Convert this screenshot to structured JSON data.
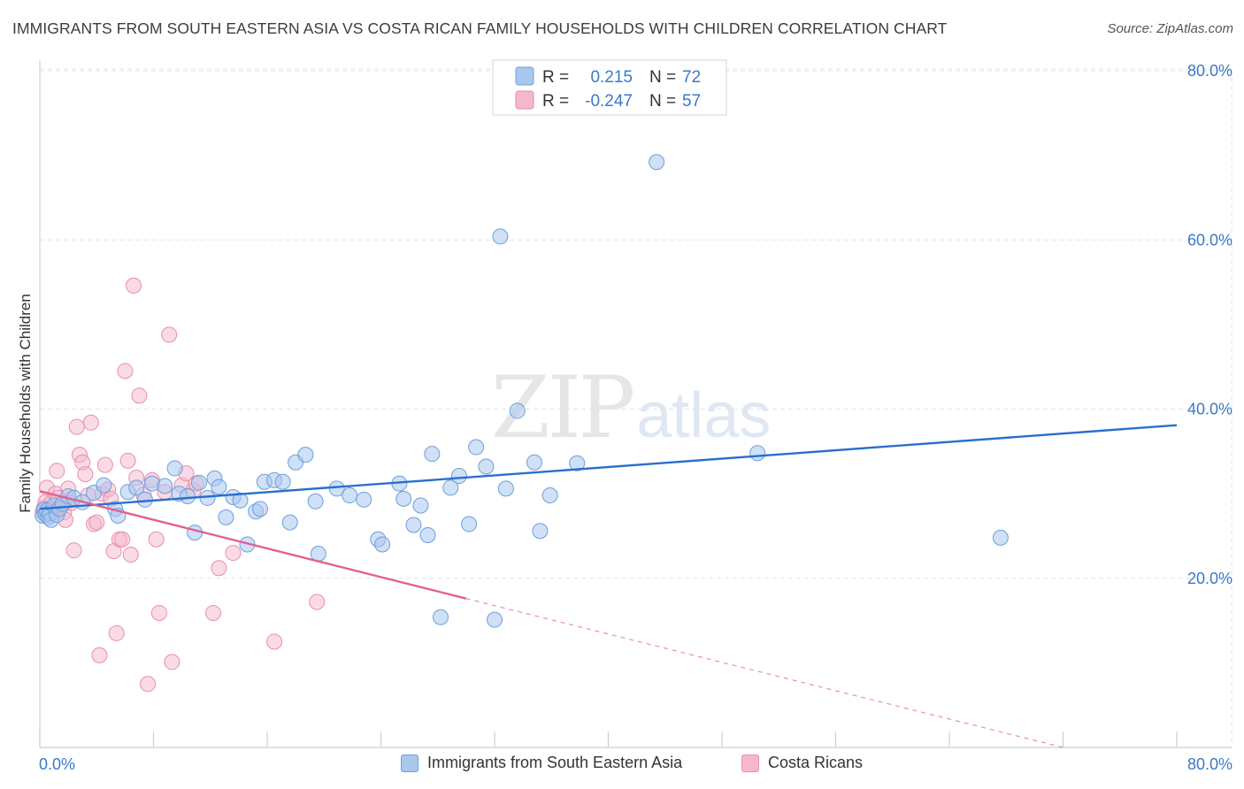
{
  "title": "IMMIGRANTS FROM SOUTH EASTERN ASIA VS COSTA RICAN FAMILY HOUSEHOLDS WITH CHILDREN CORRELATION CHART",
  "source": "Source: ZipAtlas.com",
  "watermark": {
    "zip": "ZIP",
    "atlas": "atlas"
  },
  "legend": {
    "r_label": "R =",
    "n_label": "N =",
    "series": [
      {
        "r": "0.215",
        "n": "72"
      },
      {
        "r": "-0.247",
        "n": "57"
      }
    ]
  },
  "colors": {
    "blue_fill": "#a9c7ee",
    "blue_stroke": "#6d9fdc",
    "blue_line": "#2a6fcc",
    "pink_fill": "#f5b8cb",
    "pink_stroke": "#e98dab",
    "pink_line": "#e0608e",
    "axis_text": "#3b78c8"
  },
  "chart_data": {
    "type": "scatter",
    "title": "IMMIGRANTS FROM SOUTH EASTERN ASIA VS COSTA RICAN FAMILY HOUSEHOLDS WITH CHILDREN CORRELATION CHART",
    "xlabel": "",
    "ylabel": "Family Households with Children",
    "xlim": [
      0,
      80
    ],
    "ylim": [
      0,
      80
    ],
    "x_tick_labels": [
      "0.0%",
      "80.0%"
    ],
    "y_ticks": [
      20,
      40,
      60,
      80
    ],
    "y_tick_labels": [
      "20.0%",
      "40.0%",
      "60.0%",
      "80.0%"
    ],
    "grid": true,
    "series": [
      {
        "name": "Immigrants from South Eastern Asia",
        "color": "#a9c7ee",
        "trend": {
          "x": [
            0,
            80
          ],
          "y": [
            28.2,
            38.1
          ]
        },
        "points": [
          [
            0.2,
            27.4
          ],
          [
            0.3,
            28.1
          ],
          [
            0.4,
            27.6
          ],
          [
            0.5,
            28.0
          ],
          [
            0.6,
            27.2
          ],
          [
            0.7,
            27.7
          ],
          [
            0.8,
            26.9
          ],
          [
            1.0,
            28.6
          ],
          [
            1.2,
            27.5
          ],
          [
            1.4,
            28.2
          ],
          [
            1.6,
            28.8
          ],
          [
            2.0,
            29.7
          ],
          [
            2.4,
            29.5
          ],
          [
            3.0,
            29.0
          ],
          [
            3.8,
            30.1
          ],
          [
            4.5,
            31.0
          ],
          [
            5.3,
            28.2
          ],
          [
            5.5,
            27.4
          ],
          [
            6.2,
            30.2
          ],
          [
            6.8,
            30.7
          ],
          [
            7.4,
            29.3
          ],
          [
            7.9,
            31.2
          ],
          [
            8.8,
            30.9
          ],
          [
            9.5,
            33.0
          ],
          [
            9.8,
            30.0
          ],
          [
            10.4,
            29.7
          ],
          [
            10.9,
            25.4
          ],
          [
            11.2,
            31.3
          ],
          [
            11.8,
            29.5
          ],
          [
            12.3,
            31.8
          ],
          [
            12.6,
            30.8
          ],
          [
            13.1,
            27.2
          ],
          [
            13.6,
            29.6
          ],
          [
            14.1,
            29.2
          ],
          [
            14.6,
            24.0
          ],
          [
            15.2,
            27.9
          ],
          [
            15.5,
            28.2
          ],
          [
            15.8,
            31.4
          ],
          [
            16.5,
            31.6
          ],
          [
            17.1,
            31.4
          ],
          [
            17.6,
            26.6
          ],
          [
            18.0,
            33.7
          ],
          [
            18.7,
            34.6
          ],
          [
            19.4,
            29.1
          ],
          [
            19.6,
            22.9
          ],
          [
            20.9,
            30.6
          ],
          [
            21.8,
            29.8
          ],
          [
            22.8,
            29.3
          ],
          [
            23.8,
            24.6
          ],
          [
            24.1,
            24.0
          ],
          [
            25.3,
            31.2
          ],
          [
            25.6,
            29.4
          ],
          [
            26.3,
            26.3
          ],
          [
            26.8,
            28.6
          ],
          [
            27.3,
            25.1
          ],
          [
            27.6,
            34.7
          ],
          [
            28.2,
            15.4
          ],
          [
            28.9,
            30.7
          ],
          [
            29.5,
            32.1
          ],
          [
            30.2,
            26.4
          ],
          [
            30.7,
            35.5
          ],
          [
            31.4,
            33.2
          ],
          [
            32.0,
            15.1
          ],
          [
            32.4,
            60.4
          ],
          [
            32.8,
            30.6
          ],
          [
            33.6,
            39.8
          ],
          [
            34.8,
            33.7
          ],
          [
            35.2,
            25.6
          ],
          [
            35.9,
            29.8
          ],
          [
            37.8,
            33.6
          ],
          [
            43.4,
            69.2
          ],
          [
            50.5,
            34.8
          ],
          [
            67.6,
            24.8
          ]
        ]
      },
      {
        "name": "Costa Ricans",
        "color": "#f5b8cb",
        "trend": {
          "x": [
            0,
            30
          ],
          "y": [
            30.3,
            17.6
          ]
        },
        "trend_dashed": {
          "x": [
            30,
            72
          ],
          "y": [
            17.6,
            0
          ]
        },
        "points": [
          [
            0.2,
            27.8
          ],
          [
            0.3,
            28.3
          ],
          [
            0.4,
            29.0
          ],
          [
            0.5,
            30.7
          ],
          [
            0.6,
            27.5
          ],
          [
            0.8,
            28.9
          ],
          [
            0.9,
            28.2
          ],
          [
            1.0,
            27.9
          ],
          [
            1.1,
            30.0
          ],
          [
            1.2,
            32.7
          ],
          [
            1.3,
            29.5
          ],
          [
            1.5,
            28.5
          ],
          [
            1.7,
            27.8
          ],
          [
            1.8,
            26.9
          ],
          [
            2.0,
            30.6
          ],
          [
            2.2,
            28.9
          ],
          [
            2.4,
            23.3
          ],
          [
            2.6,
            37.9
          ],
          [
            2.8,
            34.6
          ],
          [
            3.0,
            33.7
          ],
          [
            3.2,
            32.3
          ],
          [
            3.4,
            29.8
          ],
          [
            3.6,
            38.4
          ],
          [
            3.8,
            26.4
          ],
          [
            4.0,
            26.6
          ],
          [
            4.2,
            10.9
          ],
          [
            4.4,
            30.0
          ],
          [
            4.6,
            33.4
          ],
          [
            4.8,
            30.5
          ],
          [
            5.0,
            29.4
          ],
          [
            5.2,
            23.2
          ],
          [
            5.4,
            13.5
          ],
          [
            5.6,
            24.6
          ],
          [
            5.8,
            24.6
          ],
          [
            6.0,
            44.5
          ],
          [
            6.2,
            33.9
          ],
          [
            6.4,
            22.8
          ],
          [
            6.6,
            54.6
          ],
          [
            6.8,
            31.9
          ],
          [
            7.0,
            41.6
          ],
          [
            7.3,
            29.9
          ],
          [
            7.6,
            7.5
          ],
          [
            7.9,
            31.6
          ],
          [
            8.2,
            24.6
          ],
          [
            8.4,
            15.9
          ],
          [
            8.8,
            30.2
          ],
          [
            9.1,
            48.8
          ],
          [
            9.3,
            10.1
          ],
          [
            10.0,
            31.0
          ],
          [
            10.3,
            32.4
          ],
          [
            10.8,
            30.4
          ],
          [
            11.0,
            31.2
          ],
          [
            12.2,
            15.9
          ],
          [
            12.6,
            21.2
          ],
          [
            13.6,
            23.0
          ],
          [
            16.5,
            12.5
          ],
          [
            19.5,
            17.2
          ]
        ]
      }
    ]
  },
  "bottom_legend": [
    {
      "label": "Immigrants from South Eastern Asia"
    },
    {
      "label": "Costa Ricans"
    }
  ]
}
